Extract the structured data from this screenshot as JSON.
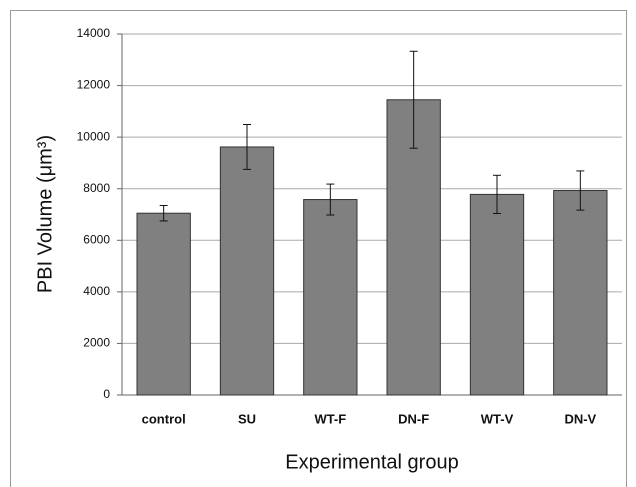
{
  "chart_data": {
    "type": "bar",
    "ylabel": "PBI Volume (μm³)",
    "xlabel": "Experimental group",
    "categories": [
      "control",
      "SU",
      "WT-F",
      "DN-F",
      "WT-V",
      "DN-V"
    ],
    "values": [
      7050,
      9620,
      7580,
      11450,
      7780,
      7930
    ],
    "errors": [
      300,
      870,
      600,
      1880,
      740,
      760
    ],
    "color": "#808080",
    "ylim": [
      0,
      14000
    ],
    "yticks": [
      0,
      2000,
      4000,
      6000,
      8000,
      10000,
      12000,
      14000
    ],
    "grid": true
  }
}
